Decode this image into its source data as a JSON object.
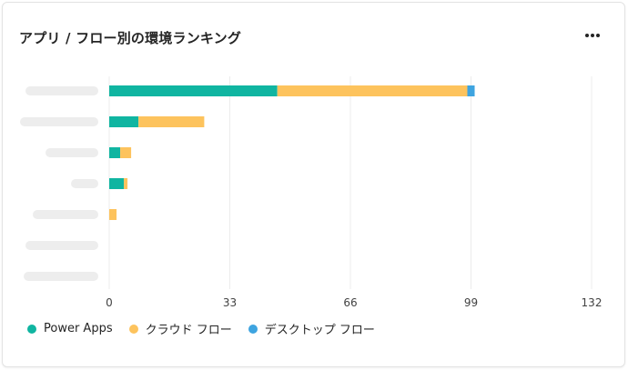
{
  "title": "アプリ / フロー別の環境ランキング",
  "menu_icon": "more-horizontal-icon",
  "chart_data": {
    "type": "bar",
    "orientation": "horizontal",
    "stacked": true,
    "categories": [
      "",
      "",
      "",
      "",
      "",
      "",
      ""
    ],
    "series": [
      {
        "name": "Power Apps",
        "color": "#10b5a1",
        "values": [
          46,
          8,
          3,
          4,
          0,
          0,
          0
        ]
      },
      {
        "name": "クラウド フロー",
        "color": "#fdc35d",
        "values": [
          52,
          18,
          3,
          1,
          2,
          0,
          0
        ]
      },
      {
        "name": "デスクトップ フロー",
        "color": "#3ea4e0",
        "values": [
          2,
          0,
          0,
          0,
          0,
          0,
          0
        ]
      }
    ],
    "xlim": [
      0,
      132
    ],
    "xticks": [
      "0",
      "33",
      "66",
      "99",
      "132"
    ],
    "xtick_values": [
      0,
      33,
      66,
      99,
      132
    ],
    "grid": true,
    "legend": "bottom-left"
  }
}
